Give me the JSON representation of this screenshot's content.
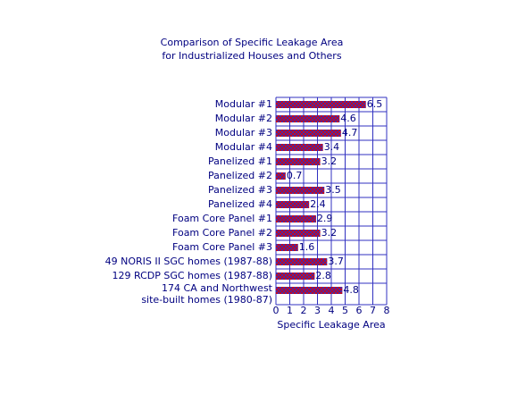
{
  "chart_data": {
    "type": "hbar",
    "title": "Comparison of Specific Leakage Area",
    "subtitle": "for Industrialized Houses and Others",
    "categories": [
      "Modular #1",
      "Modular #2",
      "Modular #3",
      "Modular #4",
      "Panelized #1",
      "Panelized #2",
      "Panelized #3",
      "Panelized #4",
      "Foam Core Panel #1",
      "Foam Core Panel #2",
      "Foam Core Panel #3",
      "49 NORIS II SGC homes (1987-88)",
      "129 RCDP SGC homes (1987-88)",
      [
        "174 CA and Northwest",
        "site-built homes (1980-87)"
      ]
    ],
    "values": [
      6.5,
      4.6,
      4.7,
      3.4,
      3.2,
      0.7,
      3.5,
      2.4,
      2.9,
      3.2,
      1.6,
      3.7,
      2.8,
      4.8
    ],
    "color": "#e00000",
    "xlim": [
      0,
      8
    ],
    "xticks": [
      0,
      1,
      2,
      3,
      4,
      5,
      6,
      7,
      8
    ],
    "xlabel": "Specific Leakage Area",
    "grid": true
  }
}
